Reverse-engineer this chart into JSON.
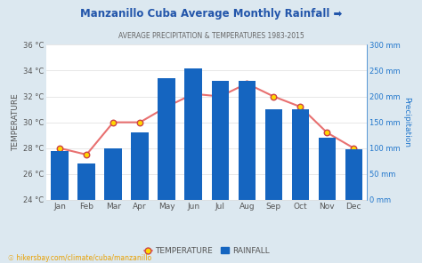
{
  "title": "Manzanillo Cuba Average Monthly Rainfall ➡",
  "subtitle": "AVERAGE PRECIPITATION & TEMPERATURES 1983-2015",
  "months": [
    "Jan",
    "Feb",
    "Mar",
    "Apr",
    "May",
    "Jun",
    "Jul",
    "Aug",
    "Sep",
    "Oct",
    "Nov",
    "Dec"
  ],
  "rainfall_mm": [
    95,
    70,
    100,
    130,
    235,
    255,
    230,
    230,
    175,
    175,
    120,
    98
  ],
  "temperature_c": [
    28.0,
    27.5,
    30.0,
    30.0,
    31.2,
    32.2,
    32.0,
    33.0,
    32.0,
    31.2,
    29.2,
    28.0
  ],
  "bar_color": "#1565C0",
  "line_color": "#E87070",
  "marker_face": "#FFD700",
  "marker_edge": "#CC4444",
  "left_ylabel": "TEMPERATURE",
  "right_ylabel": "Precipitation",
  "temp_ylim": [
    24,
    36
  ],
  "temp_yticks": [
    24,
    26,
    28,
    30,
    32,
    34,
    36
  ],
  "rain_ylim": [
    0,
    300
  ],
  "rain_yticks": [
    0,
    50,
    100,
    150,
    200,
    250,
    300
  ],
  "fig_bg_color": "#dce8f0",
  "plot_bg": "#ffffff",
  "footer": "☉ hikersbay.com/climate/cuba/manzanillo",
  "legend_temp": "TEMPERATURE",
  "legend_rain": "RAINFALL",
  "title_color": "#2255AA",
  "subtitle_color": "#666666",
  "axis_color": "#555555",
  "right_axis_color": "#2277CC",
  "grid_color": "#dddddd"
}
